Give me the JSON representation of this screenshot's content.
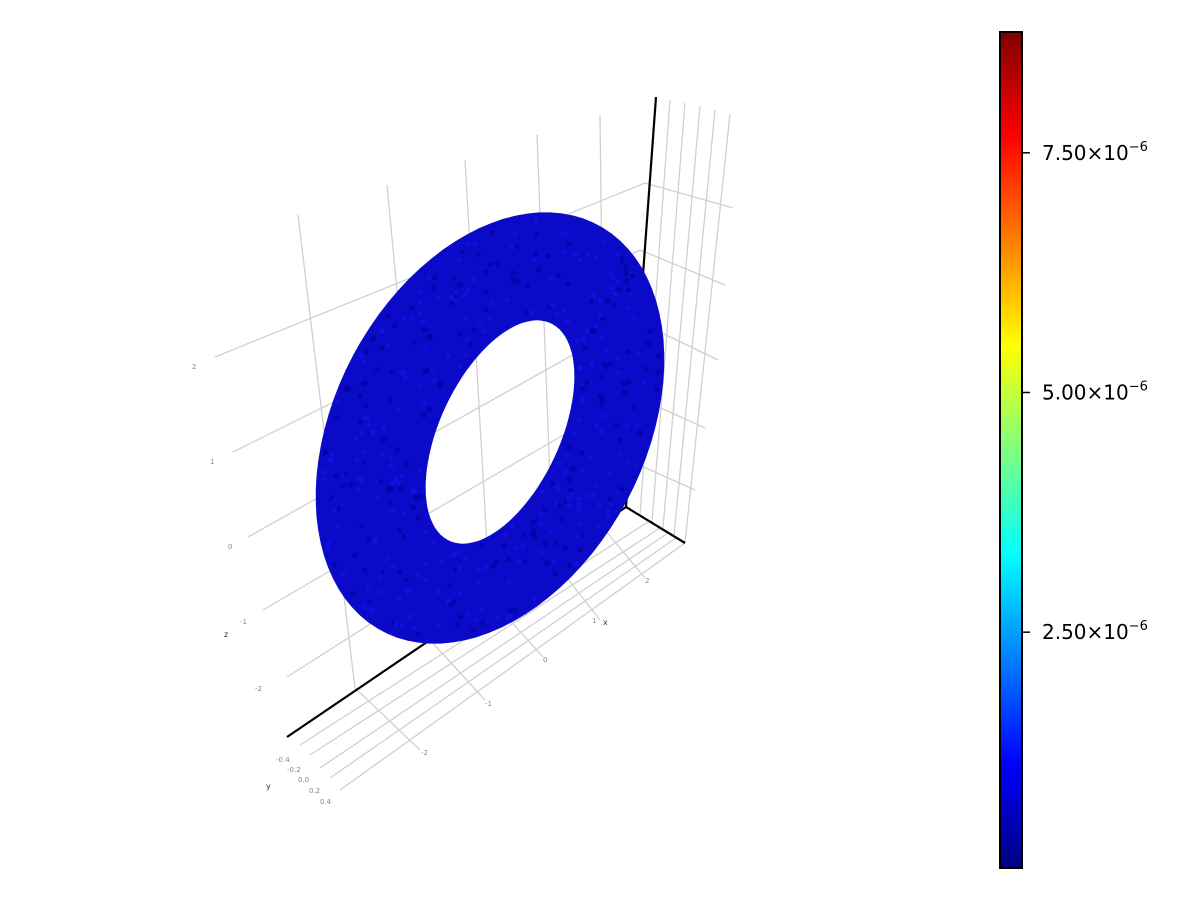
{
  "chart_data": {
    "type": "scatter3d",
    "title": "",
    "shape": "torus",
    "axes": {
      "x": {
        "label": "x",
        "ticks": [
          "-2",
          "-1",
          "0",
          "1",
          "2"
        ]
      },
      "y": {
        "label": "y",
        "ticks": [
          "-0.4",
          "-0.2",
          "0.0",
          "0.2",
          "0.4"
        ]
      },
      "z": {
        "label": "z",
        "ticks": [
          "-2",
          "-1",
          "0",
          "1",
          "2"
        ]
      }
    },
    "grid": true,
    "point_color_value_approx": 5e-07,
    "colorbar": {
      "colormap": "jet",
      "range": [
        4e-08,
        8.76e-06
      ],
      "ticks": [
        {
          "value": 2.5e-06,
          "mantissa": "2.50",
          "exponent": "−6"
        },
        {
          "value": 5e-06,
          "mantissa": "5.00",
          "exponent": "−6"
        },
        {
          "value": 7.5e-06,
          "mantissa": "7.50",
          "exponent": "−6"
        }
      ],
      "placement": "right"
    },
    "colors": {
      "points": "#0a0ac8",
      "jet": [
        "#00007f",
        "#0000ff",
        "#007fff",
        "#00ffff",
        "#7fff7f",
        "#ffff00",
        "#ff7f00",
        "#ff0000",
        "#7f0000"
      ]
    }
  }
}
